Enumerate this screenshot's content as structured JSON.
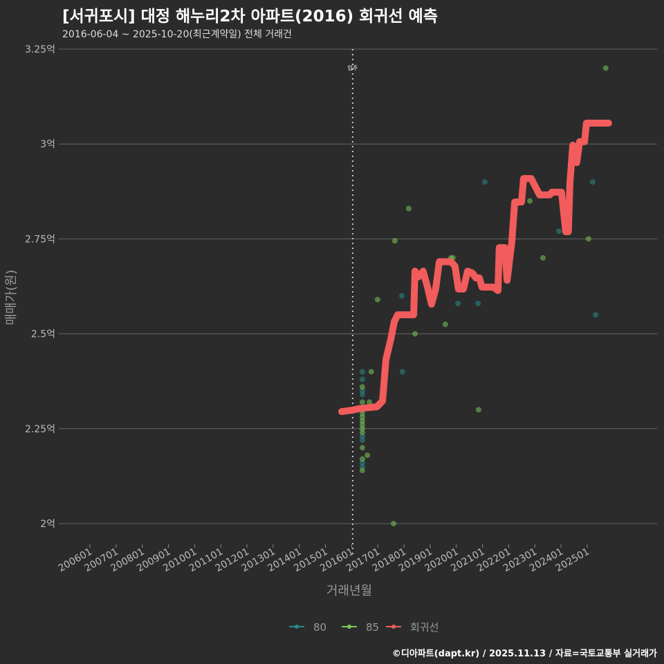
{
  "title": "[서귀포시] 대정 해누리2차 아파트(2016) 회귀선 예측",
  "subtitle": "2016-06-04 ~ 2025-10-20(최근계약일) 전체 거래건",
  "credit": "©디아파트(dapt.kr) / 2025.11.13 / 자료=국토교통부 실거래가",
  "chart_data": {
    "type": "scatter",
    "xlabel": "거래년월",
    "ylabel": "매매가(원)",
    "xlim": [
      2005.4,
      2028.1
    ],
    "ylim": [
      1.95,
      3.25
    ],
    "grid": true,
    "legend_position": "bottom",
    "x_ticks": [
      "200601",
      "200701",
      "200801",
      "200901",
      "201001",
      "201101",
      "201201",
      "201301",
      "201401",
      "201501",
      "201601",
      "201701",
      "201801",
      "201901",
      "202001",
      "202101",
      "202201",
      "202301",
      "202401",
      "202501"
    ],
    "y_ticks": [
      {
        "v": 2.0,
        "label": "2억"
      },
      {
        "v": 2.25,
        "label": "2.25억"
      },
      {
        "v": 2.5,
        "label": "2.5억"
      },
      {
        "v": 2.75,
        "label": "2.75억"
      },
      {
        "v": 3.0,
        "label": "3억"
      },
      {
        "v": 3.25,
        "label": "3.25억"
      }
    ],
    "annotation": {
      "x": 2016.04,
      "label": "입주"
    },
    "colors": {
      "80": "#2a8a8a",
      "85": "#78c85a",
      "회귀선": "#f25c5c"
    },
    "legend": [
      "80",
      "85",
      "회귀선"
    ],
    "series": [
      {
        "name": "80",
        "points": [
          [
            2016.41,
            2.4
          ],
          [
            2016.41,
            2.38
          ],
          [
            2016.41,
            2.35
          ],
          [
            2016.41,
            2.34
          ],
          [
            2016.41,
            2.23
          ],
          [
            2016.41,
            2.22
          ],
          [
            2016.41,
            2.16
          ],
          [
            2016.41,
            2.15
          ],
          [
            2017.94,
            2.4
          ],
          [
            2017.92,
            2.6
          ],
          [
            2020.06,
            2.58
          ],
          [
            2020.83,
            2.58
          ],
          [
            2021.09,
            2.9
          ],
          [
            2023.92,
            2.77
          ],
          [
            2025.21,
            2.9
          ],
          [
            2025.32,
            2.55
          ]
        ]
      },
      {
        "name": "85",
        "points": [
          [
            2016.41,
            2.36
          ],
          [
            2016.41,
            2.32
          ],
          [
            2016.41,
            2.3
          ],
          [
            2016.41,
            2.29
          ],
          [
            2016.41,
            2.28
          ],
          [
            2016.41,
            2.27
          ],
          [
            2016.41,
            2.26
          ],
          [
            2016.41,
            2.25
          ],
          [
            2016.41,
            2.24
          ],
          [
            2016.41,
            2.2
          ],
          [
            2016.41,
            2.17
          ],
          [
            2016.41,
            2.14
          ],
          [
            2016.6,
            2.18
          ],
          [
            2016.75,
            2.4
          ],
          [
            2016.68,
            2.32
          ],
          [
            2016.99,
            2.59
          ],
          [
            2017.6,
            2.0
          ],
          [
            2017.65,
            2.745
          ],
          [
            2018.18,
            2.83
          ],
          [
            2018.42,
            2.5
          ],
          [
            2019.58,
            2.525
          ],
          [
            2019.79,
            2.7
          ],
          [
            2019.87,
            2.7
          ],
          [
            2020.85,
            2.3
          ],
          [
            2022.81,
            2.85
          ],
          [
            2023.31,
            2.7
          ],
          [
            2025.05,
            2.75
          ],
          [
            2025.71,
            3.2
          ]
        ]
      },
      {
        "name": "회귀선",
        "points": [
          [
            2015.62,
            2.295
          ],
          [
            2016.04,
            2.299
          ],
          [
            2016.3,
            2.303
          ],
          [
            2016.97,
            2.308
          ],
          [
            2017.18,
            2.323
          ],
          [
            2017.31,
            2.432
          ],
          [
            2017.5,
            2.487
          ],
          [
            2017.63,
            2.532
          ],
          [
            2017.76,
            2.55
          ],
          [
            2018.37,
            2.55
          ],
          [
            2018.42,
            2.665
          ],
          [
            2018.55,
            2.65
          ],
          [
            2018.73,
            2.665
          ],
          [
            2018.9,
            2.623
          ],
          [
            2019.05,
            2.578
          ],
          [
            2019.21,
            2.618
          ],
          [
            2019.35,
            2.69
          ],
          [
            2019.79,
            2.69
          ],
          [
            2019.95,
            2.678
          ],
          [
            2020.08,
            2.618
          ],
          [
            2020.27,
            2.618
          ],
          [
            2020.43,
            2.665
          ],
          [
            2020.61,
            2.66
          ],
          [
            2020.75,
            2.647
          ],
          [
            2020.88,
            2.647
          ],
          [
            2020.98,
            2.623
          ],
          [
            2021.41,
            2.623
          ],
          [
            2021.59,
            2.614
          ],
          [
            2021.64,
            2.727
          ],
          [
            2021.85,
            2.727
          ],
          [
            2021.94,
            2.641
          ],
          [
            2022.12,
            2.742
          ],
          [
            2022.23,
            2.847
          ],
          [
            2022.49,
            2.847
          ],
          [
            2022.57,
            2.909
          ],
          [
            2022.86,
            2.909
          ],
          [
            2023.18,
            2.866
          ],
          [
            2023.57,
            2.866
          ],
          [
            2023.65,
            2.873
          ],
          [
            2024.02,
            2.873
          ],
          [
            2024.18,
            2.769
          ],
          [
            2024.28,
            2.769
          ],
          [
            2024.34,
            2.897
          ],
          [
            2024.45,
            2.997
          ],
          [
            2024.6,
            2.951
          ],
          [
            2024.71,
            3.006
          ],
          [
            2024.9,
            3.006
          ],
          [
            2024.97,
            3.055
          ],
          [
            2025.82,
            3.055
          ]
        ]
      }
    ]
  }
}
